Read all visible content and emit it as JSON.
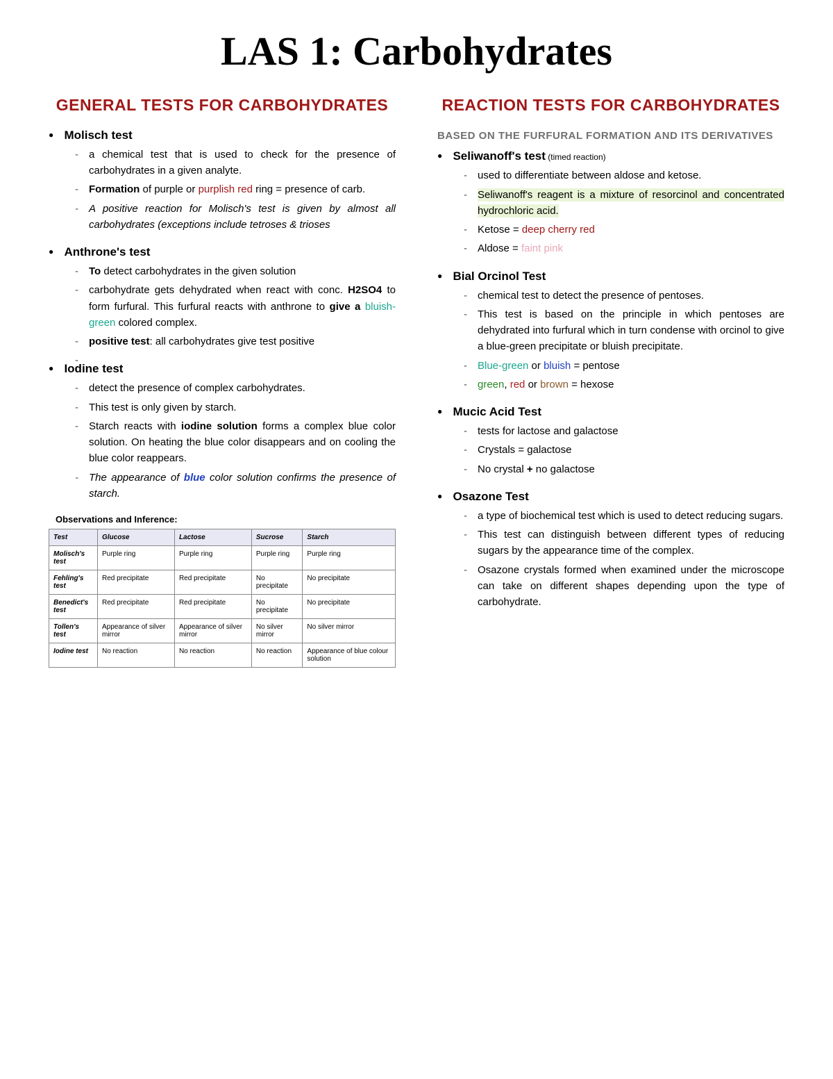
{
  "title": "LAS 1: Carbohydrates",
  "left": {
    "heading": "GENERAL TESTS FOR CARBOHYDRATES",
    "tests": {
      "molisch": {
        "name": "Molisch test",
        "d1a": "a chemical test that is used to check for the presence of carbohydrates in a given analyte.",
        "d2a": "Formation",
        "d2b": " of purple or ",
        "d2c": "purplish red",
        "d2d": " ring = presence of carb.",
        "d3": "A positive reaction for Molisch's test is given by almost all carbohydrates (exceptions include tetroses & trioses"
      },
      "anthrone": {
        "name": "Anthrone's test",
        "d1a": "To",
        "d1b": " detect carbohydrates in the given solution",
        "d2a": " carbohydrate gets dehydrated when react with conc. ",
        "d2b": "H2SO4",
        "d2c": " to form furfural. This furfural reacts with anthrone to ",
        "d2d": "give a ",
        "d2e": "bluish-green",
        "d2f": " colored complex.",
        "d3a": "positive test",
        "d3b": ": all carbohydrates give test positive"
      },
      "iodine": {
        "name": "Iodine test",
        "d1": "detect the presence of complex carbohydrates.",
        "d2": "This test is only given by starch.",
        "d3a": "Starch reacts with ",
        "d3b": "iodine solution",
        "d3c": " forms a complex blue color solution. On heating the blue color disappears and on cooling the blue color reappears.",
        "d4a": "The appearance of ",
        "d4b": "blue",
        "d4c": " color solution confirms the presence of starch."
      }
    },
    "table": {
      "caption": "Observations and Inference:",
      "headers": [
        "Test",
        "Glucose",
        "Lactose",
        "Sucrose",
        "Starch"
      ],
      "rows": [
        [
          "Molisch's test",
          "Purple ring",
          "Purple ring",
          "Purple ring",
          "Purple ring"
        ],
        [
          "Fehling's test",
          "Red precipitate",
          "Red precipitate",
          "No precipitate",
          "No precipitate"
        ],
        [
          "Benedict's test",
          "Red precipitate",
          "Red precipitate",
          "No precipitate",
          "No precipitate"
        ],
        [
          "Tollen's test",
          "Appearance of silver mirror",
          "Appearance of silver mirror",
          "No silver mirror",
          "No silver mirror"
        ],
        [
          "Iodine test",
          "No reaction",
          "No reaction",
          "No reaction",
          "Appearance of blue colour solution"
        ]
      ]
    }
  },
  "right": {
    "heading": "REACTION TESTS FOR CARBOHYDRATES",
    "subheading": "BASED ON THE FURFURAL FORMATION AND ITS DERIVATIVES",
    "tests": {
      "seliwanoff": {
        "name": "Seliwanoff's test",
        "note": " (timed reaction)",
        "d1": "used to differentiate between aldose and ketose.",
        "d2": "Seliwanoff's reagent is a mixture of resorcinol and concentrated hydrochloric acid.",
        "d3a": "Ketose = ",
        "d3b": "deep cherry red",
        "d4a": "Aldose = ",
        "d4b": "faint pink"
      },
      "bial": {
        "name": "Bial Orcinol Test",
        "d1": "chemical test to detect the presence of pentoses.",
        "d2": "This test is based on the principle in which pentoses are dehydrated into furfural which in turn condense with orcinol to give a blue-green precipitate or bluish precipitate.",
        "d3a": "Blue-green",
        "d3b": " or ",
        "d3c": "bluish",
        "d3d": " = pentose",
        "d4a": "green",
        "d4b": ", ",
        "d4c": "red",
        "d4d": " or ",
        "d4e": "brown",
        "d4f": " = hexose"
      },
      "mucic": {
        "name": "Mucic Acid Test",
        "d1": "tests for lactose and galactose",
        "d2": "Crystals = galactose",
        "d3a": "No crystal ",
        "d3b": "+",
        "d3c": " no galactose"
      },
      "osazone": {
        "name": "Osazone Test",
        "d1": " a type of biochemical test which is used to detect reducing sugars.",
        "d2": "This test can distinguish between different types of reducing sugars by the appearance time of the complex.",
        "d3": "Osazone crystals formed when examined under the microscope can take on different shapes depending upon the type of carbohydrate."
      }
    }
  }
}
